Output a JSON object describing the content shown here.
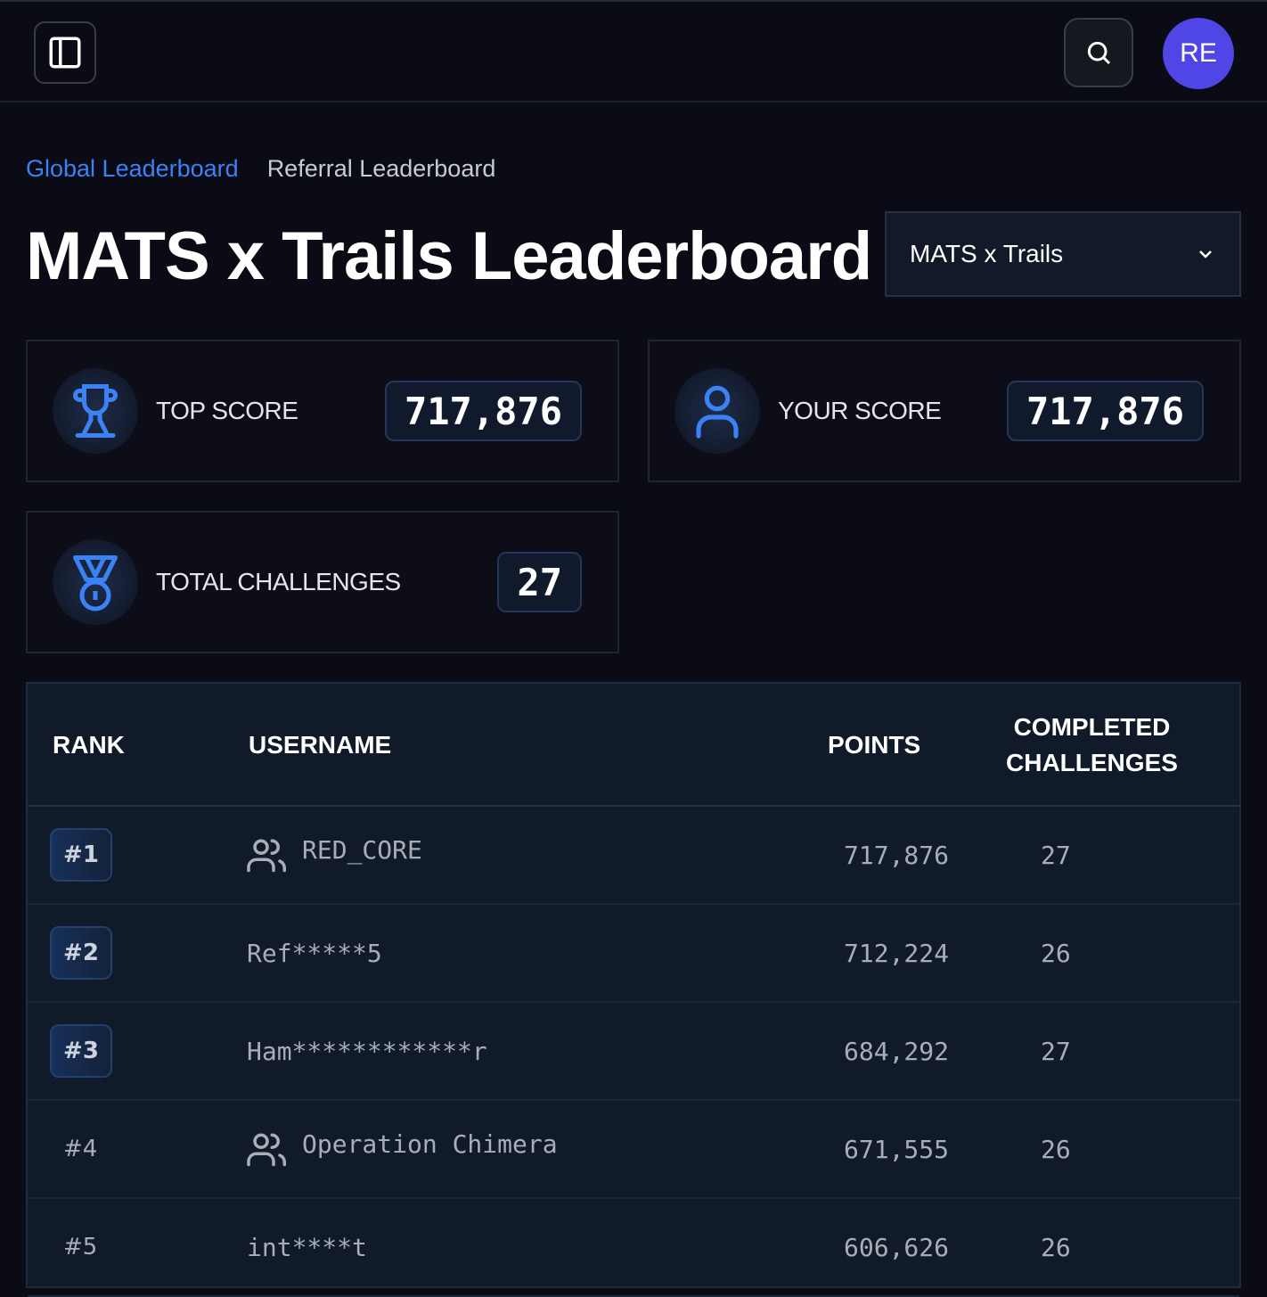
{
  "header": {
    "avatar_initials": "RE",
    "avatar_color": "#4f46e5"
  },
  "tabs": [
    {
      "label": "Global Leaderboard",
      "active": true
    },
    {
      "label": "Referral Leaderboard",
      "active": false
    }
  ],
  "page_title": "MATS x Trails Leaderboard",
  "event_select": {
    "value": "MATS x Trails"
  },
  "stats": {
    "top_score": {
      "label": "TOP SCORE",
      "value": "717,876"
    },
    "your_score": {
      "label": "YOUR SCORE",
      "value": "717,876"
    },
    "total_challenges": {
      "label": "TOTAL CHALLENGES",
      "value": "27"
    }
  },
  "table": {
    "headers": {
      "rank": "RANK",
      "username": "USERNAME",
      "points": "POINTS",
      "completed": "COMPLETED CHALLENGES"
    },
    "rows": [
      {
        "rank": "#1",
        "username": "RED_CORE",
        "team": true,
        "points": "717,876",
        "completed": "27"
      },
      {
        "rank": "#2",
        "username": "Ref*****5",
        "team": false,
        "points": "712,224",
        "completed": "26"
      },
      {
        "rank": "#3",
        "username": "Ham************r",
        "team": false,
        "points": "684,292",
        "completed": "27"
      },
      {
        "rank": "#4",
        "username": "Operation Chimera",
        "team": true,
        "points": "671,555",
        "completed": "26"
      },
      {
        "rank": "#5",
        "username": "int****t",
        "team": false,
        "points": "606,626",
        "completed": "26"
      }
    ]
  },
  "accent_color": "#3b82f6"
}
